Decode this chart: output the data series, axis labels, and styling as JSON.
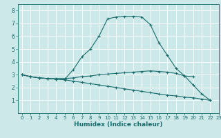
{
  "xlabel": "Humidex (Indice chaleur)",
  "bg_color": "#cce8e8",
  "grid_color": "#ffffff",
  "line_color": "#1a6b6b",
  "xlim": [
    -0.5,
    23
  ],
  "ylim": [
    0,
    8.5
  ],
  "xticks": [
    0,
    1,
    2,
    3,
    4,
    5,
    6,
    7,
    8,
    9,
    10,
    11,
    12,
    13,
    14,
    15,
    16,
    17,
    18,
    19,
    20,
    21,
    22,
    23
  ],
  "yticks": [
    1,
    2,
    3,
    4,
    5,
    6,
    7,
    8
  ],
  "lines": [
    {
      "x": [
        0,
        1,
        2,
        3,
        4,
        5,
        6,
        7,
        8,
        9,
        10,
        11,
        12,
        13,
        14,
        15,
        16,
        17,
        18,
        19,
        20,
        21,
        22
      ],
      "y": [
        3.0,
        2.85,
        2.75,
        2.7,
        2.65,
        2.65,
        3.4,
        4.4,
        5.0,
        6.0,
        7.35,
        7.5,
        7.55,
        7.55,
        7.5,
        6.9,
        5.5,
        4.5,
        3.5,
        2.9,
        2.2,
        1.5,
        1.0
      ]
    },
    {
      "x": [
        0,
        1,
        2,
        3,
        4,
        5,
        6,
        7,
        8,
        9,
        10,
        11,
        12,
        13,
        14,
        15,
        16,
        17,
        18,
        19,
        20
      ],
      "y": [
        3.0,
        2.85,
        2.75,
        2.7,
        2.7,
        2.7,
        2.75,
        2.85,
        2.9,
        3.0,
        3.05,
        3.1,
        3.15,
        3.2,
        3.25,
        3.3,
        3.25,
        3.2,
        3.1,
        2.9,
        2.85
      ]
    },
    {
      "x": [
        0,
        1,
        2,
        3,
        4,
        5,
        6,
        7,
        8,
        9,
        10,
        11,
        12,
        13,
        14,
        15,
        16,
        17,
        18,
        19,
        20,
        21,
        22
      ],
      "y": [
        3.0,
        2.85,
        2.75,
        2.7,
        2.65,
        2.6,
        2.5,
        2.4,
        2.3,
        2.2,
        2.1,
        2.0,
        1.9,
        1.8,
        1.7,
        1.6,
        1.5,
        1.4,
        1.35,
        1.25,
        1.2,
        1.1,
        1.0
      ]
    }
  ]
}
